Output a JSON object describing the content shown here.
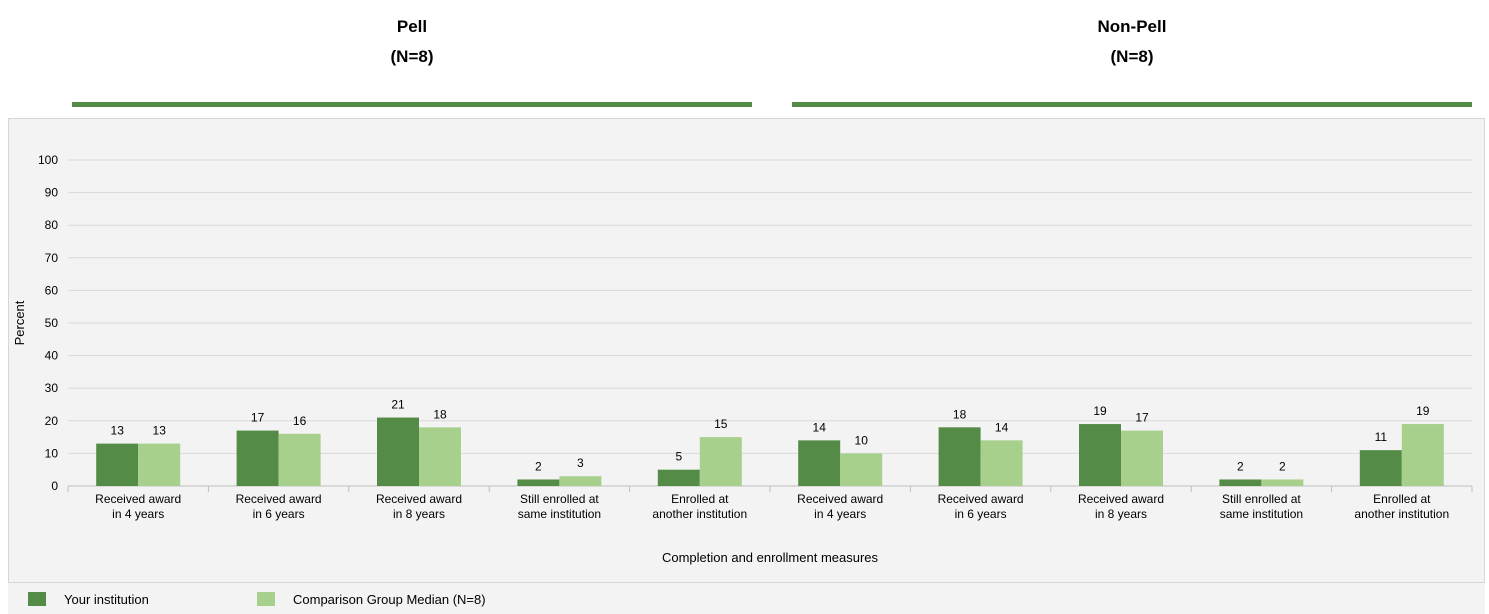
{
  "groups": [
    {
      "name": "Pell",
      "n_label": "(N=8)"
    },
    {
      "name": "Non-Pell",
      "n_label": "(N=8)"
    }
  ],
  "legend": {
    "items": [
      {
        "label": "Your institution",
        "color": "#548c47"
      },
      {
        "label": "Comparison Group Median (N=8)",
        "color": "#a8d08d"
      }
    ]
  },
  "chart_data": {
    "type": "bar",
    "xlabel": "Completion and enrollment measures",
    "ylabel": "Percent",
    "ylim": [
      0,
      100
    ],
    "yticks": [
      0,
      10,
      20,
      30,
      40,
      50,
      60,
      70,
      80,
      90,
      100
    ],
    "grid": true,
    "legend_position": "bottom-left",
    "categories": [
      [
        "Received award",
        "in 4 years"
      ],
      [
        "Received award",
        "in 6 years"
      ],
      [
        "Received award",
        "in 8 years"
      ],
      [
        "Still enrolled at",
        "same institution"
      ],
      [
        "Enrolled at",
        "another institution"
      ],
      [
        "Received award",
        "in 4 years"
      ],
      [
        "Received award",
        "in 6 years"
      ],
      [
        "Received award",
        "in 8 years"
      ],
      [
        "Still enrolled at",
        "same institution"
      ],
      [
        "Enrolled at",
        "another institution"
      ]
    ],
    "series": [
      {
        "name": "Your institution",
        "color": "#548c47",
        "values": [
          13,
          17,
          21,
          2,
          5,
          14,
          18,
          19,
          2,
          11
        ]
      },
      {
        "name": "Comparison Group Median (N=8)",
        "color": "#a8d08d",
        "values": [
          13,
          16,
          18,
          3,
          15,
          10,
          14,
          17,
          2,
          19
        ]
      }
    ]
  }
}
